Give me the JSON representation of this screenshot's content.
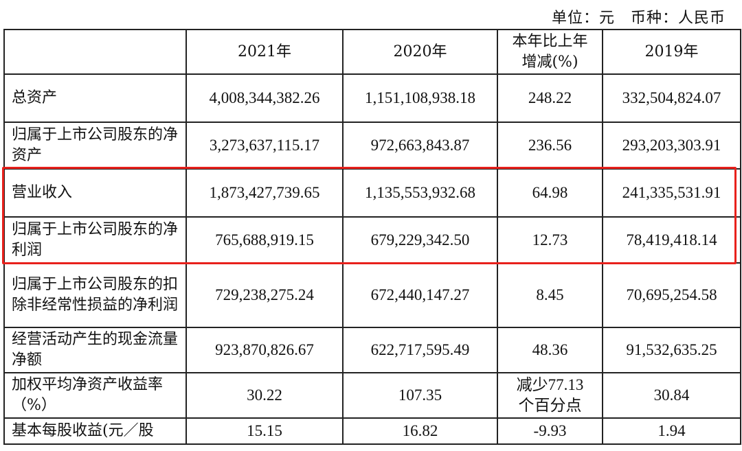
{
  "unit_note": "单位：元　币种：人民币",
  "highlight_color": "#e8211c",
  "headers": [
    "",
    "2021年",
    "2020年",
    "本年比上年增减(%)",
    "2019年"
  ],
  "rows": [
    {
      "label": "总资产",
      "y2021": "4,008,344,382.26",
      "y2020": "1,151,108,938.18",
      "change": "248.22",
      "y2019": "332,504,824.07"
    },
    {
      "label": "归属于上市公司股东的净资产",
      "y2021": "3,273,637,115.17",
      "y2020": "972,663,843.87",
      "change": "236.56",
      "y2019": "293,203,303.91"
    },
    {
      "label": "营业收入",
      "y2021": "1,873,427,739.65",
      "y2020": "1,135,553,932.68",
      "change": "64.98",
      "y2019": "241,335,531.91"
    },
    {
      "label": "归属于上市公司股东的净利润",
      "y2021": "765,688,919.15",
      "y2020": "679,229,342.50",
      "change": "12.73",
      "y2019": "78,419,418.14"
    },
    {
      "label": "归属于上市公司股东的扣除非经常性损益的净利润",
      "y2021": "729,238,275.24",
      "y2020": "672,440,147.27",
      "change": "8.45",
      "y2019": "70,695,254.58"
    },
    {
      "label": "经营活动产生的现金流量净额",
      "y2021": "923,870,826.67",
      "y2020": "622,717,595.49",
      "change": "48.36",
      "y2019": "91,532,635.25"
    },
    {
      "label": "加权平均净资产收益率（%）",
      "y2021": "30.22",
      "y2020": "107.35",
      "change": "减少77.13个百分点",
      "y2019": "30.84"
    },
    {
      "label": "基本每股收益(元／股",
      "y2021": "15.15",
      "y2020": "16.82",
      "change": "-9.93",
      "y2019": "1.94"
    }
  ]
}
